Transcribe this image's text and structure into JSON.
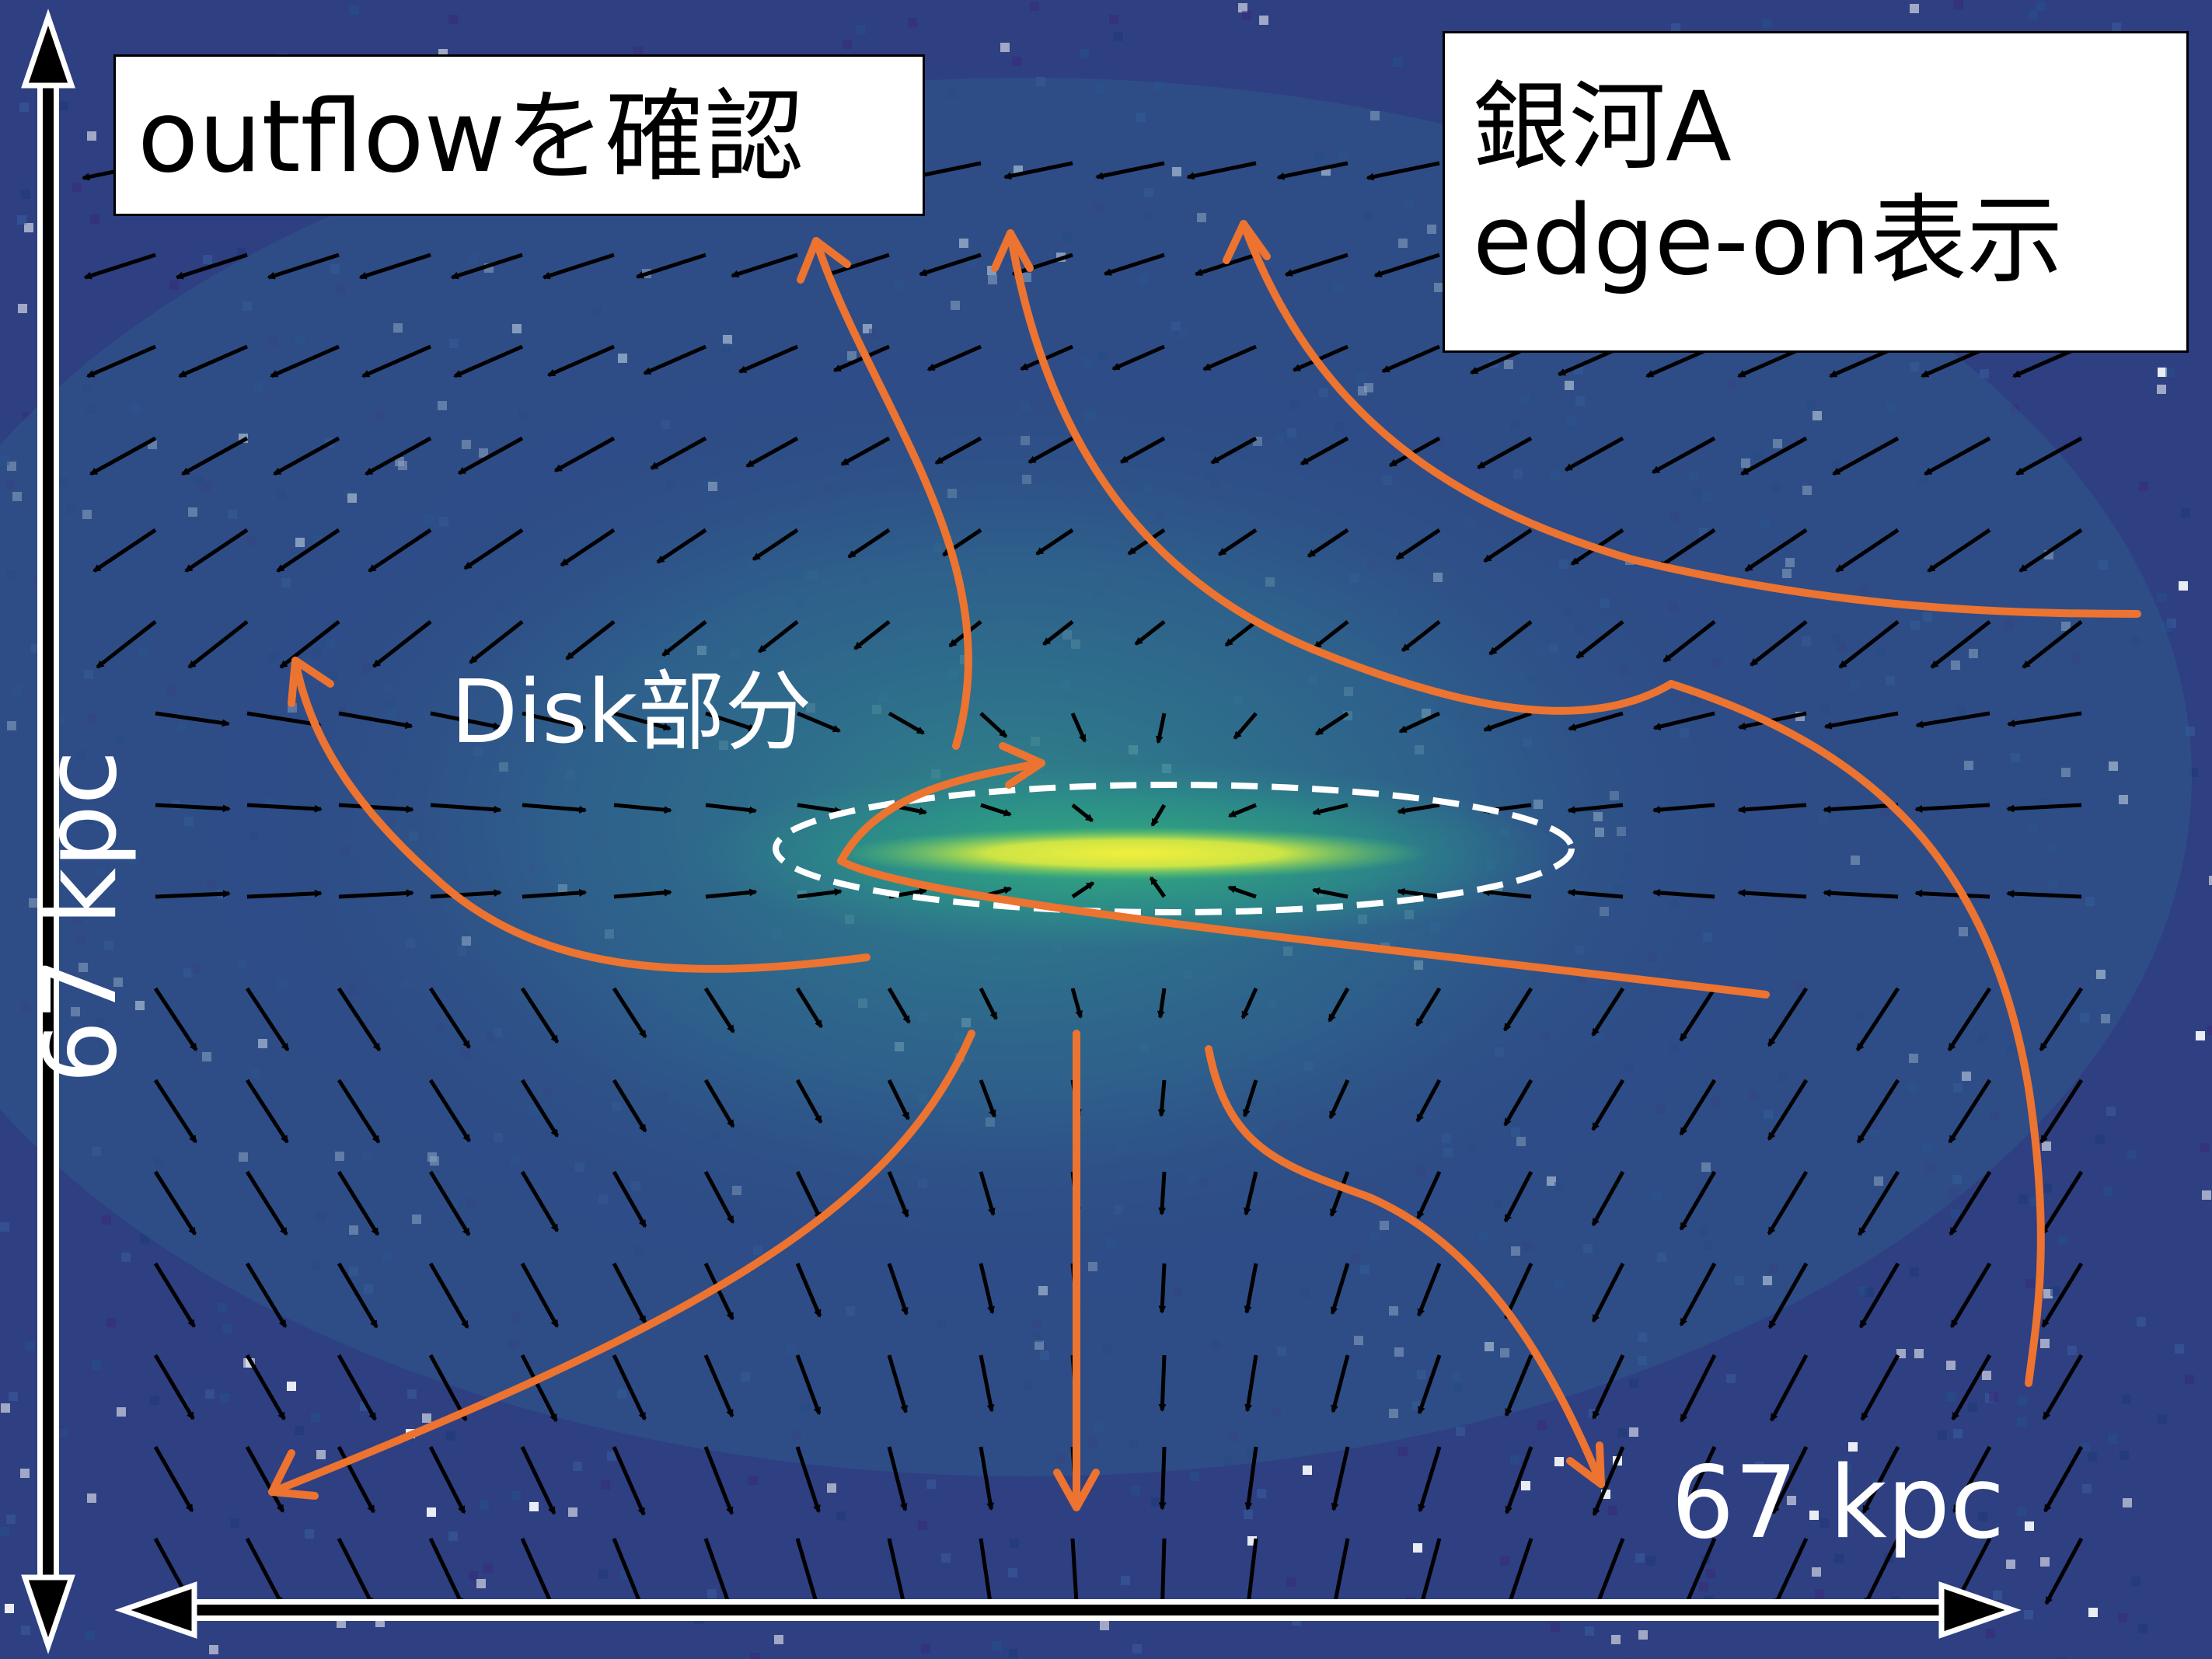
{
  "title": "outflowを確認",
  "galaxy": {
    "name": "銀河A",
    "view": "edge-on表示"
  },
  "disk_label": "Disk部分",
  "scale": {
    "horizontal": "67 kpc",
    "vertical": "67 kpc"
  },
  "colors": {
    "background": "#2e3f82",
    "disk_core": "#e8e94a",
    "disk_glow": "#2aa886",
    "flow_lines": "#ec7330",
    "vector_arrows": "#000000",
    "disk_outline": "#ffffff"
  },
  "icons": [
    "velocity-vector-arrow-icon",
    "flow-streamline-arrow-icon",
    "double-headed-scale-arrow-icon"
  ]
}
